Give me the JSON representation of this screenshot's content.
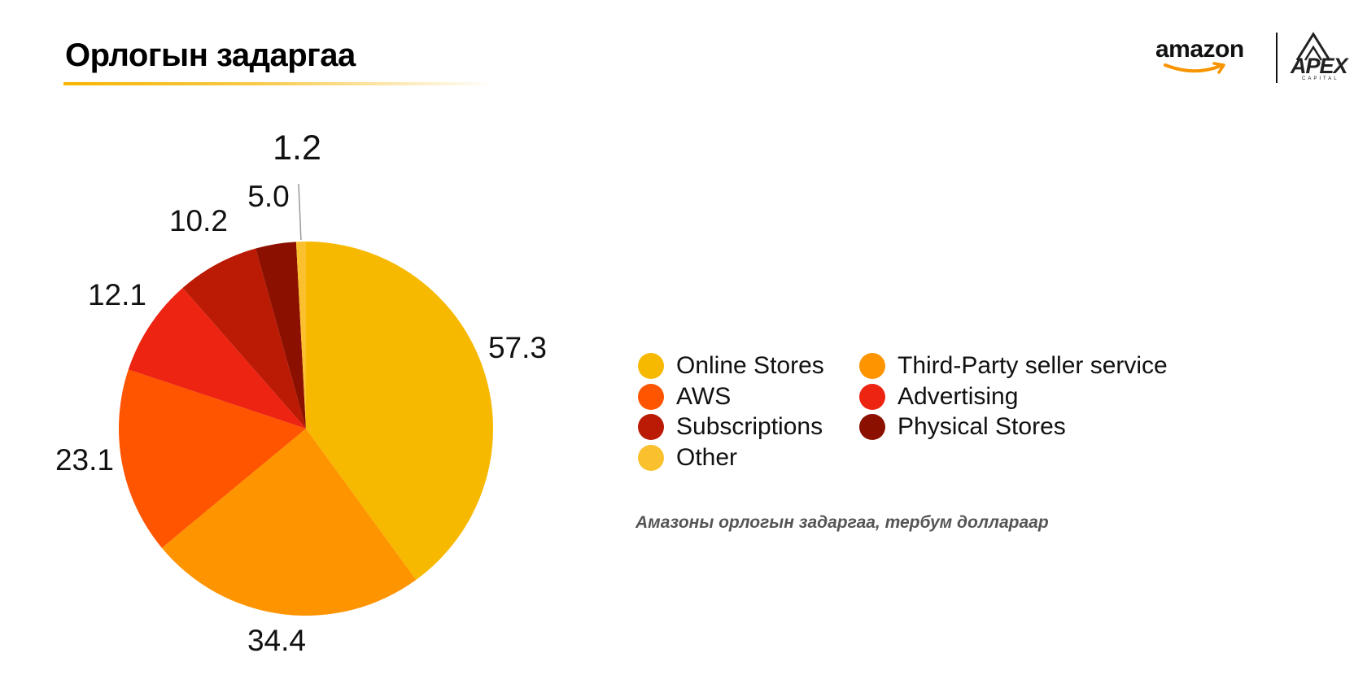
{
  "slide": {
    "title": "Орлогын задаргаа",
    "caption": "Амазоны орлогын задаргаа, тербум доллараар"
  },
  "logos": {
    "amazon": "amazon",
    "apex": "APEX",
    "apex_sub": "CAPITAL"
  },
  "colors": {
    "title_underline": "#f7b500",
    "caption": "#555555"
  },
  "chart_data": {
    "type": "pie",
    "title": "",
    "categories": [
      "Online Stores",
      "Third-Party seller service",
      "AWS",
      "Advertising",
      "Subscriptions",
      "Physical Stores",
      "Other"
    ],
    "values": [
      57.3,
      34.4,
      23.1,
      12.1,
      10.2,
      5.0,
      1.2
    ],
    "value_labels": [
      "57.3",
      "34.4",
      "23.1",
      "12.1",
      "10.2",
      "5.0",
      "1.2"
    ],
    "colors": [
      "#f7b900",
      "#fe9400",
      "#ff5400",
      "#ee2412",
      "#bb1a04",
      "#8b1000",
      "#fbc02d"
    ],
    "start_angle": "top (12 o'clock), clockwise",
    "legend": {
      "placement": "right",
      "columns": 2,
      "order": [
        "Online Stores",
        "Third-Party seller service",
        "AWS",
        "Advertising",
        "Subscriptions",
        "Physical Stores",
        "Other"
      ]
    }
  }
}
